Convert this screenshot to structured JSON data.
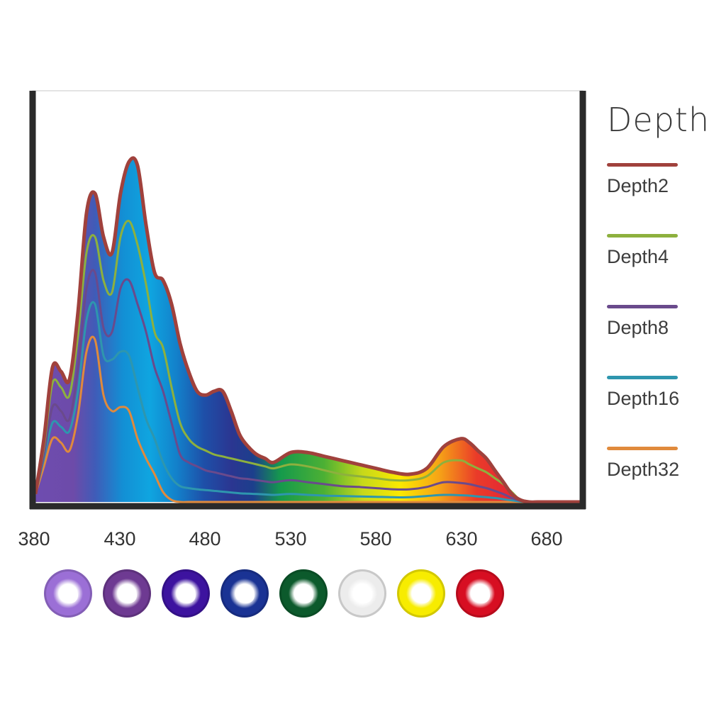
{
  "chart_data": {
    "type": "area",
    "xlabel": "",
    "ylabel": "",
    "xlim": [
      380,
      700
    ],
    "ylim": [
      0,
      100
    ],
    "x_ticks": [
      380,
      430,
      480,
      530,
      580,
      630,
      680
    ],
    "legend_title": "Depth",
    "legend_position": "right",
    "x": [
      380,
      385,
      390,
      395,
      400,
      405,
      410,
      415,
      420,
      425,
      430,
      435,
      440,
      445,
      450,
      455,
      460,
      465,
      470,
      475,
      480,
      485,
      490,
      495,
      500,
      505,
      510,
      515,
      520,
      530,
      540,
      550,
      560,
      570,
      580,
      590,
      600,
      610,
      620,
      630,
      635,
      640,
      645,
      650,
      655,
      660,
      665,
      670,
      675,
      680,
      685,
      690,
      695,
      700
    ],
    "series": [
      {
        "name": "Depth2",
        "color": "#a0413c",
        "values": [
          2,
          16,
          34,
          33,
          31,
          48,
          73,
          78,
          67,
          63,
          78,
          86,
          85,
          70,
          58,
          56,
          50,
          40,
          33,
          28,
          27,
          28,
          28,
          23,
          17,
          14,
          12,
          11,
          10,
          12.5,
          12.5,
          11.5,
          10.5,
          9.5,
          8.5,
          7.5,
          7,
          8.5,
          14,
          16,
          15,
          13,
          11,
          8,
          5,
          2,
          0.5,
          0,
          0,
          0,
          0,
          0,
          0,
          0
        ]
      },
      {
        "name": "Depth4",
        "color": "#8db03e",
        "values": [
          2,
          14,
          30,
          29,
          27,
          42,
          63,
          67,
          56,
          53,
          67,
          71,
          65,
          55,
          43,
          39,
          29,
          20,
          16,
          14,
          13,
          12,
          11.5,
          11,
          10.5,
          10,
          9.5,
          9,
          8.5,
          9.5,
          9,
          8,
          7,
          6.5,
          6,
          5.5,
          5.5,
          6.5,
          10,
          10.5,
          9.5,
          8.5,
          7.5,
          6,
          4.5,
          2.5,
          0.5,
          0,
          0,
          0,
          0,
          0,
          0,
          0
        ]
      },
      {
        "name": "Depth8",
        "color": "#6a4a8c",
        "values": [
          2,
          12,
          24,
          23,
          21,
          34,
          54,
          58,
          44,
          43,
          54,
          56,
          50,
          43,
          34,
          28,
          20,
          12,
          10,
          9,
          8,
          7.5,
          7,
          6.5,
          6,
          5.8,
          5.5,
          5.2,
          5,
          5.5,
          5,
          4.5,
          4,
          3.8,
          3.5,
          3.2,
          3.2,
          3.8,
          5,
          4.8,
          4.5,
          4,
          3.5,
          2.8,
          2,
          1,
          0.3,
          0,
          0,
          0,
          0,
          0,
          0,
          0
        ]
      },
      {
        "name": "Depth16",
        "color": "#2e96ae",
        "values": [
          2,
          11,
          20,
          19,
          18,
          28,
          46,
          50,
          37,
          36,
          38,
          37,
          29,
          21,
          16,
          10,
          6,
          4,
          3.5,
          3.2,
          3,
          2.8,
          2.6,
          2.4,
          2.2,
          2.1,
          2,
          1.9,
          1.8,
          2,
          1.8,
          1.6,
          1.5,
          1.4,
          1.3,
          1.2,
          1.2,
          1.5,
          1.8,
          1.7,
          1.6,
          1.4,
          1.2,
          1,
          0.7,
          0.4,
          0.1,
          0,
          0,
          0,
          0,
          0,
          0,
          0
        ]
      },
      {
        "name": "Depth32",
        "color": "#e08a3c",
        "values": [
          2,
          9,
          16,
          15,
          13,
          22,
          38,
          41,
          27,
          23,
          24,
          23,
          16,
          11,
          7,
          2.5,
          0.5,
          0,
          0,
          0,
          0,
          0,
          0,
          0,
          0,
          0,
          0,
          0,
          0,
          0,
          0,
          0,
          0,
          0,
          0,
          0,
          0,
          0,
          0,
          0,
          0,
          0,
          0,
          0,
          0,
          0,
          0,
          0,
          0,
          0,
          0,
          0,
          0,
          0
        ]
      }
    ]
  },
  "legend": {
    "title": "Depth",
    "items": [
      {
        "label": "Depth2",
        "color": "#a0413c"
      },
      {
        "label": "Depth4",
        "color": "#8db03e"
      },
      {
        "label": "Depth8",
        "color": "#6a4a8c"
      },
      {
        "label": "Depth16",
        "color": "#2e96ae"
      },
      {
        "label": "Depth32",
        "color": "#e08a3c"
      }
    ]
  },
  "x_tick_labels": [
    "380",
    "430",
    "480",
    "530",
    "580",
    "630",
    "680"
  ],
  "led_colors": [
    "#9b6fd6",
    "#6e3a92",
    "#3d139f",
    "#1a3394",
    "#0c5a2c",
    "#ececec",
    "#f7ec00",
    "#d70e22"
  ]
}
